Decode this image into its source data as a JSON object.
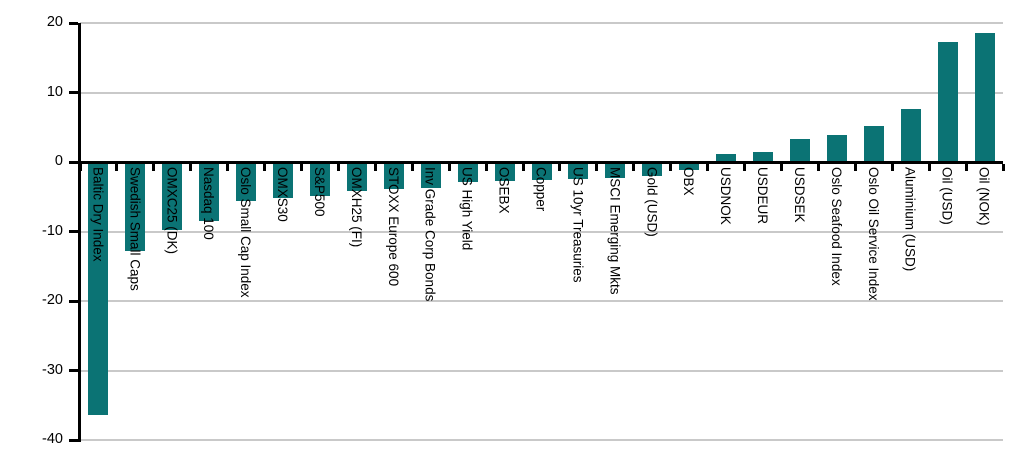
{
  "chart_data": {
    "type": "bar",
    "title": "",
    "xlabel": "",
    "ylabel": "",
    "categories": [
      "Baltic Dry Index",
      "Swedish Small Caps",
      "OMXC25 (DK)",
      "Nasdaq 100",
      "Oslo Small Cap Index",
      "OMXS30",
      "S&P500",
      "OMXH25 (FI)",
      "STOXX Europe 600",
      "Inv Grade Corp Bonds",
      "US High Yield",
      "OSEBX",
      "Copper",
      "US 10yr Treasuries",
      "MSCI Emerging Mkts",
      "Gold (USD)",
      "OBX",
      "USDNOK",
      "USDEUR",
      "USDSEK",
      "Oslo Seafood Index",
      "Oslo Oil Service Index",
      "Aluminium (USD)",
      "Oil (USD)",
      "Oil (NOK)"
    ],
    "values": [
      -36.2,
      -12.6,
      -9.6,
      -8.4,
      -5.4,
      -5.1,
      -4.8,
      -4.1,
      -3.8,
      -3.6,
      -2.7,
      -2.6,
      -2.4,
      -2.3,
      -2.1,
      -1.9,
      -1.0,
      1.1,
      1.5,
      3.3,
      3.9,
      5.2,
      7.6,
      17.3,
      18.6
    ],
    "ylim": [
      -40,
      20
    ],
    "y_ticks": [
      20,
      10,
      0,
      -10,
      -20,
      -30,
      -40
    ],
    "grid": true,
    "legend": "none",
    "bar_color": "#0B7374"
  },
  "colors": {
    "bar": "#0B7374",
    "gridline": "#c9c9c9",
    "axis": "#000000",
    "text": "#000000",
    "background": "#ffffff"
  }
}
